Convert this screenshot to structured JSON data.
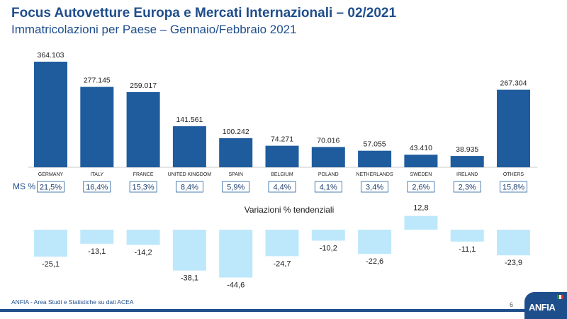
{
  "header": {
    "title": "Focus Autovetture Europa e Mercati Internazionali – 02/2021",
    "subtitle": "Immatricolazioni per Paese – Gennaio/Febbraio 2021"
  },
  "ms_label": "MS %",
  "footer": {
    "source": "ANFIA - Area Studi e Statistiche su dati ACEA",
    "page_number": "6",
    "logo_text": "ANFIA"
  },
  "colors": {
    "bar": "#1f5c9e",
    "variation_bar": "#bde8fb",
    "ms_box_border": "#1f5c9e",
    "title": "#1f4e8c"
  },
  "chart_data": [
    {
      "type": "bar",
      "categories": [
        "GERMANY",
        "ITALY",
        "FRANCE",
        "UNITED KINGDOM",
        "SPAIN",
        "BELGIUM",
        "POLAND",
        "NETHERLANDS",
        "SWEDEN",
        "IRELAND",
        "OTHERS"
      ],
      "values": [
        364103,
        277145,
        259017,
        141561,
        100242,
        74271,
        70016,
        57055,
        43410,
        38935,
        267304
      ],
      "value_labels": [
        "364.103",
        "277.145",
        "259.017",
        "141.561",
        "100.242",
        "74.271",
        "70.016",
        "57.055",
        "43.410",
        "38.935",
        "267.304"
      ],
      "ms_values": [
        21.5,
        16.4,
        15.3,
        8.4,
        5.9,
        4.4,
        4.1,
        3.4,
        2.6,
        2.3,
        15.8
      ],
      "ms_labels": [
        "21,5%",
        "16,4%",
        "15,3%",
        "8,4%",
        "5,9%",
        "4,4%",
        "4,1%",
        "3,4%",
        "2,6%",
        "2,3%",
        "15,8%"
      ],
      "ylim": [
        0,
        364103
      ]
    },
    {
      "type": "bar",
      "title": "Variazioni % tendenziali",
      "categories": [
        "GERMANY",
        "ITALY",
        "FRANCE",
        "UNITED KINGDOM",
        "SPAIN",
        "BELGIUM",
        "POLAND",
        "NETHERLANDS",
        "SWEDEN",
        "IRELAND",
        "OTHERS"
      ],
      "values": [
        -25.1,
        -13.1,
        -14.2,
        -38.1,
        -44.6,
        -24.7,
        -10.2,
        -22.6,
        12.8,
        -11.1,
        -23.9
      ],
      "value_labels": [
        "-25,1",
        "-13,1",
        "-14,2",
        "-38,1",
        "-44,6",
        "-24,7",
        "-10,2",
        "-22,6",
        "12,8",
        "-11,1",
        "-23,9"
      ],
      "ylim": [
        -44.6,
        12.8
      ]
    }
  ]
}
